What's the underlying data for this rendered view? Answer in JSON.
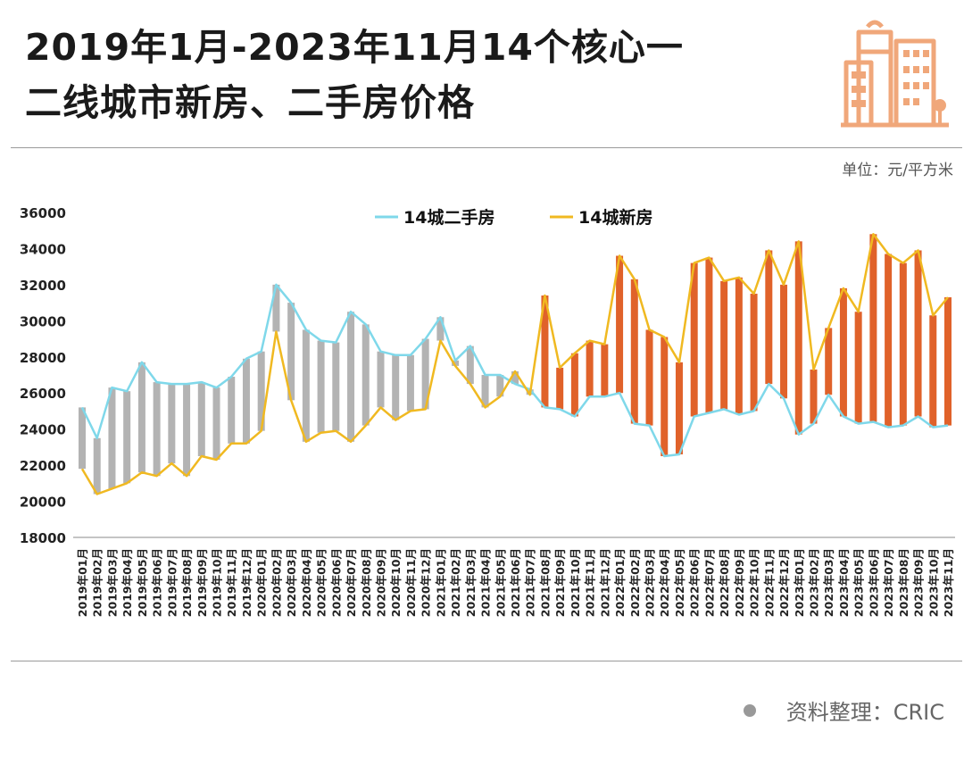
{
  "title": {
    "line1": "2019年1月-2023年11月14个核心一",
    "line2": "二线城市新房、二手房价格"
  },
  "unit_label": "单位：元/平方米",
  "source_label": "资料整理：CRIC",
  "logo_icon": "city-buildings-icon",
  "colors": {
    "second_hand_line": "#7fd8ea",
    "new_home_line": "#f0b921",
    "bar_before": "#b3b3b3",
    "bar_after": "#e0622a",
    "logo": "#f0a77a"
  },
  "chart_data": {
    "type": "line",
    "title": "",
    "xlabel": "",
    "ylabel": "",
    "ylim": [
      18000,
      36000
    ],
    "yticks": [
      18000,
      20000,
      22000,
      24000,
      26000,
      28000,
      30000,
      32000,
      34000,
      36000
    ],
    "grid": false,
    "legend_position": "top",
    "categories": [
      "2019年01月",
      "2019年02月",
      "2019年03月",
      "2019年04月",
      "2019年05月",
      "2019年06月",
      "2019年07月",
      "2019年08月",
      "2019年09月",
      "2019年10月",
      "2019年11月",
      "2019年12月",
      "2020年01月",
      "2020年02月",
      "2020年03月",
      "2020年04月",
      "2020年05月",
      "2020年06月",
      "2020年07月",
      "2020年08月",
      "2020年09月",
      "2020年10月",
      "2020年11月",
      "2020年12月",
      "2021年01月",
      "2021年02月",
      "2021年03月",
      "2021年04月",
      "2021年05月",
      "2021年06月",
      "2021年07月",
      "2021年08月",
      "2021年09月",
      "2021年10月",
      "2021年11月",
      "2021年12月",
      "2022年01月",
      "2022年02月",
      "2022年03月",
      "2022年04月",
      "2022年05月",
      "2022年06月",
      "2022年07月",
      "2022年08月",
      "2022年09月",
      "2022年10月",
      "2022年11月",
      "2022年12月",
      "2023年01月",
      "2023年02月",
      "2023年03月",
      "2023年04月",
      "2023年05月",
      "2023年06月",
      "2023年07月",
      "2023年08月",
      "2023年09月",
      "2023年10月",
      "2023年11月"
    ],
    "series": [
      {
        "name": "14城二手房",
        "values": [
          25200,
          23500,
          26300,
          26100,
          27700,
          26600,
          26500,
          26500,
          26600,
          26300,
          26900,
          27900,
          28300,
          32000,
          31000,
          29500,
          28900,
          28800,
          30500,
          29800,
          28300,
          28100,
          28100,
          29000,
          30200,
          27800,
          28600,
          27000,
          27000,
          26500,
          26200,
          25200,
          25100,
          24700,
          25800,
          25800,
          26000,
          24300,
          24200,
          22500,
          22600,
          24700,
          24900,
          25100,
          24800,
          25000,
          26500,
          25700,
          23700,
          24300,
          25900,
          24700,
          24300,
          24400,
          24100,
          24200,
          24700,
          24100,
          24200
        ]
      },
      {
        "name": "14城新房",
        "values": [
          21800,
          20400,
          20700,
          21000,
          21600,
          21400,
          22100,
          21400,
          22500,
          22300,
          23200,
          23200,
          23900,
          29400,
          25600,
          23300,
          23800,
          23900,
          23300,
          24200,
          25200,
          24500,
          25000,
          25100,
          28900,
          27500,
          26500,
          25200,
          25800,
          27200,
          25900,
          31400,
          27400,
          28200,
          28900,
          28700,
          33600,
          32300,
          29500,
          29100,
          27700,
          33200,
          33500,
          32200,
          32400,
          31500,
          33900,
          32000,
          34400,
          27300,
          29600,
          31800,
          30500,
          34800,
          33700,
          33200,
          33900,
          30300,
          31300
        ]
      }
    ],
    "bar_highlight_start": "2021年08月"
  }
}
